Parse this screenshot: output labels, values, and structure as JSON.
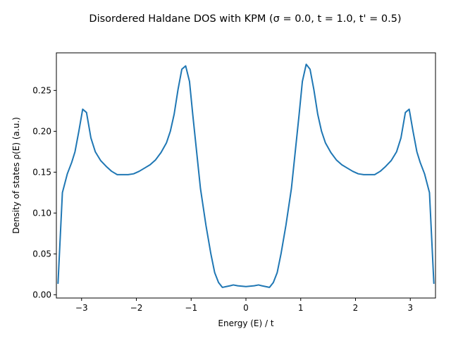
{
  "chart_data": {
    "type": "line",
    "title": "Disordered Haldane DOS with KPM (σ = 0.0, t = 1.0, t' = 0.5)",
    "xlabel": "Energy (E) / t",
    "ylabel": "Density of states ρ(E) (a.u.)",
    "xlim": [
      -3.46,
      3.46
    ],
    "ylim": [
      -0.004,
      0.296
    ],
    "xticks": [
      -3,
      -2,
      -1,
      0,
      1,
      2,
      3
    ],
    "xtick_labels": [
      "−3",
      "−2",
      "−1",
      "0",
      "1",
      "2",
      "3"
    ],
    "yticks": [
      0.0,
      0.05,
      0.1,
      0.15,
      0.2,
      0.25
    ],
    "ytick_labels": [
      "0.00",
      "0.05",
      "0.10",
      "0.15",
      "0.20",
      "0.25"
    ],
    "grid": false,
    "legend": "none",
    "colors": {
      "line": "#1f77b4",
      "axes": "#000000"
    },
    "series": [
      {
        "x": [
          -3.43,
          -3.35,
          -3.26,
          -3.18,
          -3.12,
          -3.05,
          -2.98,
          -2.91,
          -2.83,
          -2.75,
          -2.65,
          -2.55,
          -2.45,
          -2.35,
          -2.25,
          -2.15,
          -2.05,
          -1.95,
          -1.85,
          -1.75,
          -1.65,
          -1.55,
          -1.45,
          -1.38,
          -1.31,
          -1.24,
          -1.17,
          -1.1,
          -1.03,
          -0.97,
          -0.9,
          -0.83,
          -0.73,
          -0.64,
          -0.57,
          -0.5,
          -0.43,
          -0.36,
          -0.29,
          -0.23,
          -0.15,
          0.0,
          0.15,
          0.23,
          0.29,
          0.36,
          0.43,
          0.5,
          0.57,
          0.64,
          0.73,
          0.83,
          0.9,
          0.97,
          1.03,
          1.1,
          1.17,
          1.24,
          1.31,
          1.38,
          1.45,
          1.55,
          1.65,
          1.75,
          1.85,
          1.95,
          2.05,
          2.15,
          2.25,
          2.35,
          2.45,
          2.55,
          2.65,
          2.75,
          2.83,
          2.91,
          2.98,
          3.05,
          3.12,
          3.18,
          3.26,
          3.35,
          3.43
        ],
        "y": [
          0.014,
          0.125,
          0.148,
          0.162,
          0.175,
          0.2,
          0.227,
          0.223,
          0.192,
          0.175,
          0.164,
          0.157,
          0.151,
          0.147,
          0.147,
          0.147,
          0.148,
          0.151,
          0.155,
          0.159,
          0.165,
          0.174,
          0.186,
          0.2,
          0.221,
          0.251,
          0.276,
          0.28,
          0.261,
          0.22,
          0.175,
          0.13,
          0.085,
          0.05,
          0.027,
          0.015,
          0.009,
          0.01,
          0.011,
          0.012,
          0.011,
          0.01,
          0.011,
          0.012,
          0.011,
          0.01,
          0.009,
          0.015,
          0.027,
          0.05,
          0.085,
          0.13,
          0.175,
          0.22,
          0.261,
          0.282,
          0.276,
          0.251,
          0.221,
          0.2,
          0.186,
          0.174,
          0.165,
          0.159,
          0.155,
          0.151,
          0.148,
          0.147,
          0.147,
          0.147,
          0.151,
          0.157,
          0.164,
          0.175,
          0.192,
          0.223,
          0.227,
          0.2,
          0.175,
          0.162,
          0.148,
          0.125,
          0.014
        ]
      }
    ]
  }
}
